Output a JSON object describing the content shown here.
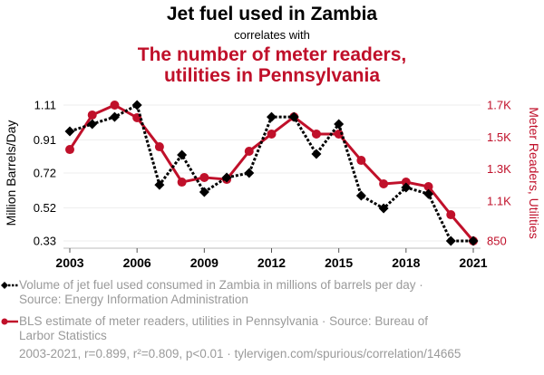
{
  "header": {
    "title": "Jet fuel used in Zambia",
    "subtitle": "correlates with",
    "title2_line1": "The number of meter readers,",
    "title2_line2": "utilities in Pennsylvania"
  },
  "colors": {
    "series1": "#000000",
    "series2": "#c0102a",
    "grid": "#eeeeee",
    "muted": "#9a9a9a"
  },
  "chart_data": {
    "type": "line",
    "title": "Jet fuel used in Zambia correlates with The number of meter readers, utilities in Pennsylvania",
    "x": [
      2003,
      2004,
      2005,
      2006,
      2007,
      2008,
      2009,
      2010,
      2011,
      2012,
      2013,
      2014,
      2015,
      2016,
      2017,
      2018,
      2019,
      2020,
      2021
    ],
    "x_ticks": [
      "2003",
      "2006",
      "2009",
      "2012",
      "2015",
      "2018",
      "2021"
    ],
    "xlim": [
      2003,
      2021
    ],
    "grid": true,
    "legend_position": "bottom",
    "left_axis": {
      "label": "Million Barrels/Day",
      "ylim": [
        0.33,
        1.11
      ],
      "ticks": [
        1.11,
        0.91,
        0.72,
        0.52,
        0.33
      ],
      "tick_labels": [
        "1.11",
        "0.91",
        "0.72",
        "0.52",
        "0.33"
      ]
    },
    "right_axis": {
      "label": "Meter Readers, Utilities",
      "ylim": [
        850,
        1700
      ],
      "ticks": [
        1700,
        1500,
        1300,
        1100,
        850
      ],
      "tick_labels": [
        "1.7K",
        "1.5K",
        "1.3K",
        "1.1K",
        "850"
      ]
    },
    "series": [
      {
        "name": "Volume of jet fuel used consumed in Zambia in millions of barrels per day",
        "axis": "left",
        "style": "dotted-diamond",
        "values": [
          0.959,
          1.001,
          1.042,
          1.11,
          0.652,
          0.824,
          0.611,
          0.694,
          0.72,
          1.042,
          1.042,
          0.829,
          1.001,
          0.59,
          0.517,
          0.637,
          0.6,
          0.33,
          0.33
        ]
      },
      {
        "name": "BLS estimate of meter readers, utilities in Pennsylvania",
        "axis": "right",
        "style": "solid-circle",
        "values": [
          1422,
          1638,
          1700,
          1621,
          1439,
          1218,
          1247,
          1235,
          1411,
          1519,
          1626,
          1519,
          1519,
          1354,
          1207,
          1218,
          1190,
          1014,
          850
        ]
      }
    ]
  },
  "legend": {
    "item1_line1": "Volume of jet fuel used consumed in Zambia in millions of barrels per day ·",
    "item1_line2": "Source: Energy Information Administration",
    "item2_line1": "BLS estimate of meter readers, utilities in Pennsylvania · Source: Bureau of",
    "item2_line2": "Larbor Statistics"
  },
  "footer": "2003-2021, r=0.899, r²=0.809, p<0.01 · tylervigen.com/spurious/correlation/14665"
}
